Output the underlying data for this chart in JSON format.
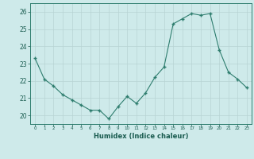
{
  "x": [
    0,
    1,
    2,
    3,
    4,
    5,
    6,
    7,
    8,
    9,
    10,
    11,
    12,
    13,
    14,
    15,
    16,
    17,
    18,
    19,
    20,
    21,
    22,
    23
  ],
  "y": [
    23.3,
    22.1,
    21.7,
    21.2,
    20.9,
    20.6,
    20.3,
    20.3,
    19.8,
    20.5,
    21.1,
    20.7,
    21.3,
    22.2,
    22.8,
    25.3,
    25.6,
    25.9,
    25.8,
    25.9,
    23.8,
    22.5,
    22.1,
    21.6
  ],
  "xlabel": "Humidex (Indice chaleur)",
  "ylim": [
    19.5,
    26.5
  ],
  "xlim": [
    -0.5,
    23.5
  ],
  "yticks": [
    20,
    21,
    22,
    23,
    24,
    25,
    26
  ],
  "xtick_labels": [
    "0",
    "1",
    "2",
    "3",
    "4",
    "5",
    "6",
    "7",
    "8",
    "9",
    "10",
    "11",
    "12",
    "13",
    "14",
    "15",
    "16",
    "17",
    "18",
    "19",
    "20",
    "21",
    "22",
    "23"
  ],
  "line_color": "#2e7d6e",
  "marker_color": "#2e7d6e",
  "bg_color": "#ceeaea",
  "grid_color": "#b8d4d4",
  "axis_label_color": "#1a5c50",
  "tick_color": "#1a5c50",
  "spine_color": "#2e7d6e"
}
